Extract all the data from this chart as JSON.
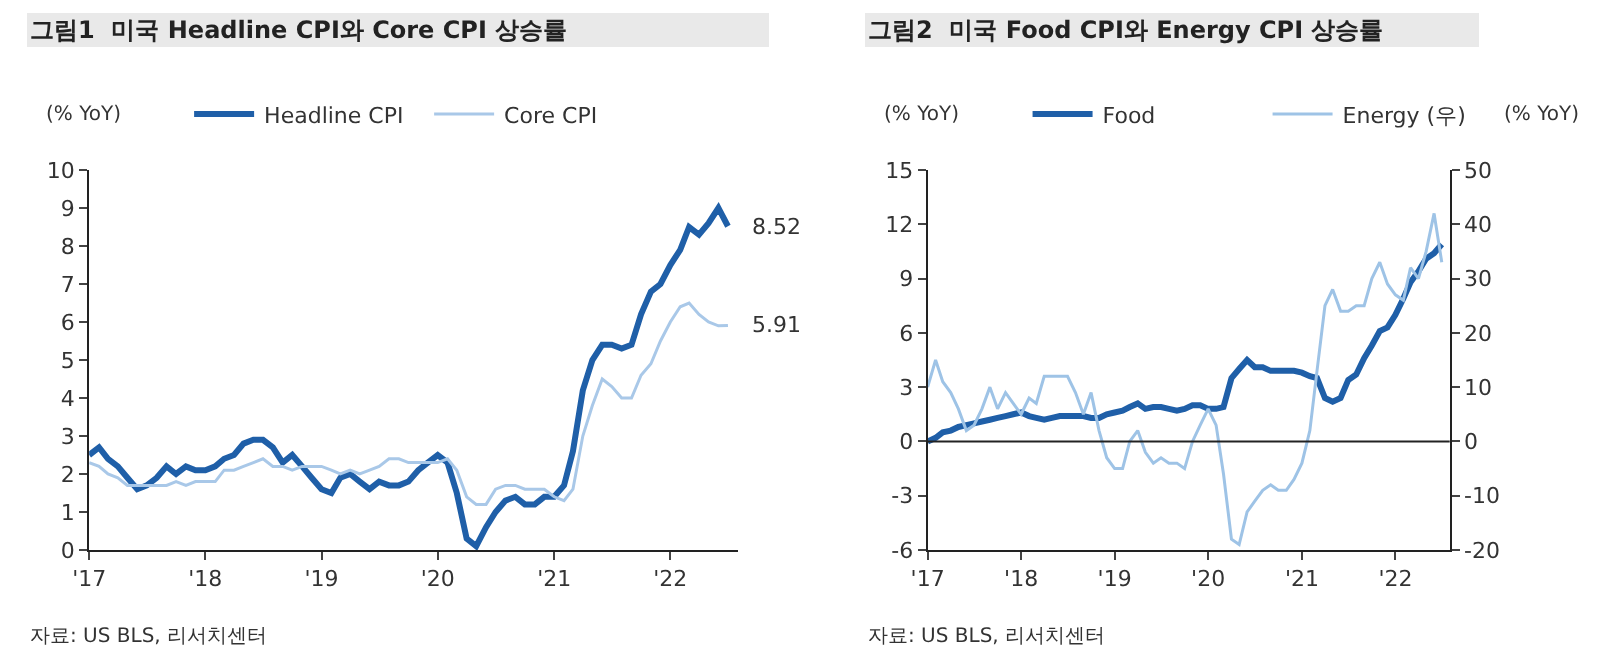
{
  "chart_data": [
    {
      "type": "line",
      "title": "그림1  미국 Headline CPI와 Core CPI 상승률",
      "ylabel": "(% YoY)",
      "legend": "top",
      "marker": "none",
      "xlim": [
        "2017-01",
        "2022-08"
      ],
      "xticks": [
        {
          "value": "2017-01",
          "label": "'17"
        },
        {
          "value": "2018-01",
          "label": "'18"
        },
        {
          "value": "2019-01",
          "label": "'19"
        },
        {
          "value": "2020-01",
          "label": "'20"
        },
        {
          "value": "2021-01",
          "label": "'21"
        },
        {
          "value": "2022-01",
          "label": "'22"
        }
      ],
      "ylim": [
        0,
        10
      ],
      "yticks": [
        0,
        1,
        2,
        3,
        4,
        5,
        6,
        7,
        8,
        9,
        10
      ],
      "x": [
        "2017-01",
        "2017-02",
        "2017-03",
        "2017-04",
        "2017-05",
        "2017-06",
        "2017-07",
        "2017-08",
        "2017-09",
        "2017-10",
        "2017-11",
        "2017-12",
        "2018-01",
        "2018-02",
        "2018-03",
        "2018-04",
        "2018-05",
        "2018-06",
        "2018-07",
        "2018-08",
        "2018-09",
        "2018-10",
        "2018-11",
        "2018-12",
        "2019-01",
        "2019-02",
        "2019-03",
        "2019-04",
        "2019-05",
        "2019-06",
        "2019-07",
        "2019-08",
        "2019-09",
        "2019-10",
        "2019-11",
        "2019-12",
        "2020-01",
        "2020-02",
        "2020-03",
        "2020-04",
        "2020-05",
        "2020-06",
        "2020-07",
        "2020-08",
        "2020-09",
        "2020-10",
        "2020-11",
        "2020-12",
        "2021-01",
        "2021-02",
        "2021-03",
        "2021-04",
        "2021-05",
        "2021-06",
        "2021-07",
        "2021-08",
        "2021-09",
        "2021-10",
        "2021-11",
        "2021-12",
        "2022-01",
        "2022-02",
        "2022-03",
        "2022-04",
        "2022-05",
        "2022-06",
        "2022-07"
      ],
      "series": [
        {
          "name": "Headline CPI",
          "color": "#1f5fa8",
          "values": [
            2.5,
            2.7,
            2.4,
            2.2,
            1.9,
            1.6,
            1.7,
            1.9,
            2.2,
            2.0,
            2.2,
            2.1,
            2.1,
            2.2,
            2.4,
            2.5,
            2.8,
            2.9,
            2.9,
            2.7,
            2.3,
            2.5,
            2.2,
            1.9,
            1.6,
            1.5,
            1.9,
            2.0,
            1.8,
            1.6,
            1.8,
            1.7,
            1.7,
            1.8,
            2.1,
            2.3,
            2.5,
            2.3,
            1.5,
            0.3,
            0.1,
            0.6,
            1.0,
            1.3,
            1.4,
            1.2,
            1.2,
            1.4,
            1.4,
            1.7,
            2.6,
            4.2,
            5.0,
            5.4,
            5.4,
            5.3,
            5.4,
            6.2,
            6.8,
            7.0,
            7.5,
            7.9,
            8.5,
            8.3,
            8.6,
            9.0,
            8.52
          ]
        },
        {
          "name": "Core CPI",
          "color": "#a9c8e8",
          "values": [
            2.3,
            2.2,
            2.0,
            1.9,
            1.7,
            1.7,
            1.7,
            1.7,
            1.7,
            1.8,
            1.7,
            1.8,
            1.8,
            1.8,
            2.1,
            2.1,
            2.2,
            2.3,
            2.4,
            2.2,
            2.2,
            2.1,
            2.2,
            2.2,
            2.2,
            2.1,
            2.0,
            2.1,
            2.0,
            2.1,
            2.2,
            2.4,
            2.4,
            2.3,
            2.3,
            2.3,
            2.3,
            2.4,
            2.1,
            1.4,
            1.2,
            1.2,
            1.6,
            1.7,
            1.7,
            1.6,
            1.6,
            1.6,
            1.4,
            1.3,
            1.6,
            3.0,
            3.8,
            4.5,
            4.3,
            4.0,
            4.0,
            4.6,
            4.9,
            5.5,
            6.0,
            6.4,
            6.5,
            6.2,
            6.0,
            5.9,
            5.91
          ]
        }
      ],
      "annotations": [
        {
          "text": "8.52",
          "x": "2022-07",
          "y": 8.52
        },
        {
          "text": "5.91",
          "x": "2022-07",
          "y": 5.91
        },
        "자료: US BLS, 리서치센터"
      ]
    },
    {
      "type": "line",
      "title": "그림2  미국 Food CPI와 Energy CPI 상승률",
      "ylabel": "(% YoY)",
      "y2label": "(% YoY)",
      "legend": "top",
      "marker": "none",
      "xlim": [
        "2017-01",
        "2022-08"
      ],
      "xticks": [
        {
          "value": "2017-01",
          "label": "'17"
        },
        {
          "value": "2018-01",
          "label": "'18"
        },
        {
          "value": "2019-01",
          "label": "'19"
        },
        {
          "value": "2020-01",
          "label": "'20"
        },
        {
          "value": "2021-01",
          "label": "'21"
        },
        {
          "value": "2022-01",
          "label": "'22"
        }
      ],
      "ylim": [
        -6,
        15
      ],
      "yticks": [
        -6,
        -3,
        0,
        3,
        6,
        9,
        12,
        15
      ],
      "y2lim": [
        -20,
        50
      ],
      "y2ticks": [
        -20,
        -10,
        0,
        10,
        20,
        30,
        40,
        50
      ],
      "ref_lines": [
        {
          "axis": "y",
          "value": 0,
          "color": "#222222"
        }
      ],
      "x": [
        "2017-01",
        "2017-02",
        "2017-03",
        "2017-04",
        "2017-05",
        "2017-06",
        "2017-07",
        "2017-08",
        "2017-09",
        "2017-10",
        "2017-11",
        "2017-12",
        "2018-01",
        "2018-02",
        "2018-03",
        "2018-04",
        "2018-05",
        "2018-06",
        "2018-07",
        "2018-08",
        "2018-09",
        "2018-10",
        "2018-11",
        "2018-12",
        "2019-01",
        "2019-02",
        "2019-03",
        "2019-04",
        "2019-05",
        "2019-06",
        "2019-07",
        "2019-08",
        "2019-09",
        "2019-10",
        "2019-11",
        "2019-12",
        "2020-01",
        "2020-02",
        "2020-03",
        "2020-04",
        "2020-05",
        "2020-06",
        "2020-07",
        "2020-08",
        "2020-09",
        "2020-10",
        "2020-11",
        "2020-12",
        "2021-01",
        "2021-02",
        "2021-03",
        "2021-04",
        "2021-05",
        "2021-06",
        "2021-07",
        "2021-08",
        "2021-09",
        "2021-10",
        "2021-11",
        "2021-12",
        "2022-01",
        "2022-02",
        "2022-03",
        "2022-04",
        "2022-05",
        "2022-06",
        "2022-07"
      ],
      "series": [
        {
          "name": "Food",
          "color": "#1f5fa8",
          "values": [
            0.0,
            0.2,
            0.5,
            0.6,
            0.8,
            0.9,
            1.0,
            1.1,
            1.2,
            1.3,
            1.4,
            1.5,
            1.6,
            1.4,
            1.3,
            1.2,
            1.3,
            1.4,
            1.4,
            1.4,
            1.4,
            1.3,
            1.3,
            1.5,
            1.6,
            1.7,
            1.9,
            2.1,
            1.8,
            1.9,
            1.9,
            1.8,
            1.7,
            1.8,
            2.0,
            2.0,
            1.8,
            1.8,
            1.9,
            3.5,
            4.0,
            4.5,
            4.1,
            4.1,
            3.9,
            3.9,
            3.9,
            3.9,
            3.8,
            3.6,
            3.5,
            2.4,
            2.2,
            2.4,
            3.4,
            3.7,
            4.6,
            5.3,
            6.1,
            6.3,
            7.0,
            7.9,
            8.8,
            9.4,
            10.1,
            10.4,
            10.9
          ]
        },
        {
          "name": "Energy (우)",
          "color": "#9ec3e6",
          "axis": "y2",
          "values": [
            10,
            15,
            11,
            9,
            6,
            2,
            3,
            6,
            10,
            6,
            9,
            7,
            5,
            8,
            7,
            12,
            12,
            12,
            12,
            9,
            5,
            9,
            2,
            -3,
            -5,
            -5,
            0,
            2,
            -2,
            -4,
            -3,
            -4,
            -4,
            -5,
            0,
            3,
            6,
            3,
            -6,
            -18,
            -19,
            -13,
            -11,
            -9,
            -8,
            -9,
            -9,
            -7,
            -4,
            2,
            13,
            25,
            28,
            24,
            24,
            25,
            25,
            30,
            33,
            29,
            27,
            26,
            32,
            30,
            35,
            42,
            33
          ]
        }
      ],
      "annotations": [
        "자료: US BLS, 리서치센터"
      ]
    }
  ]
}
